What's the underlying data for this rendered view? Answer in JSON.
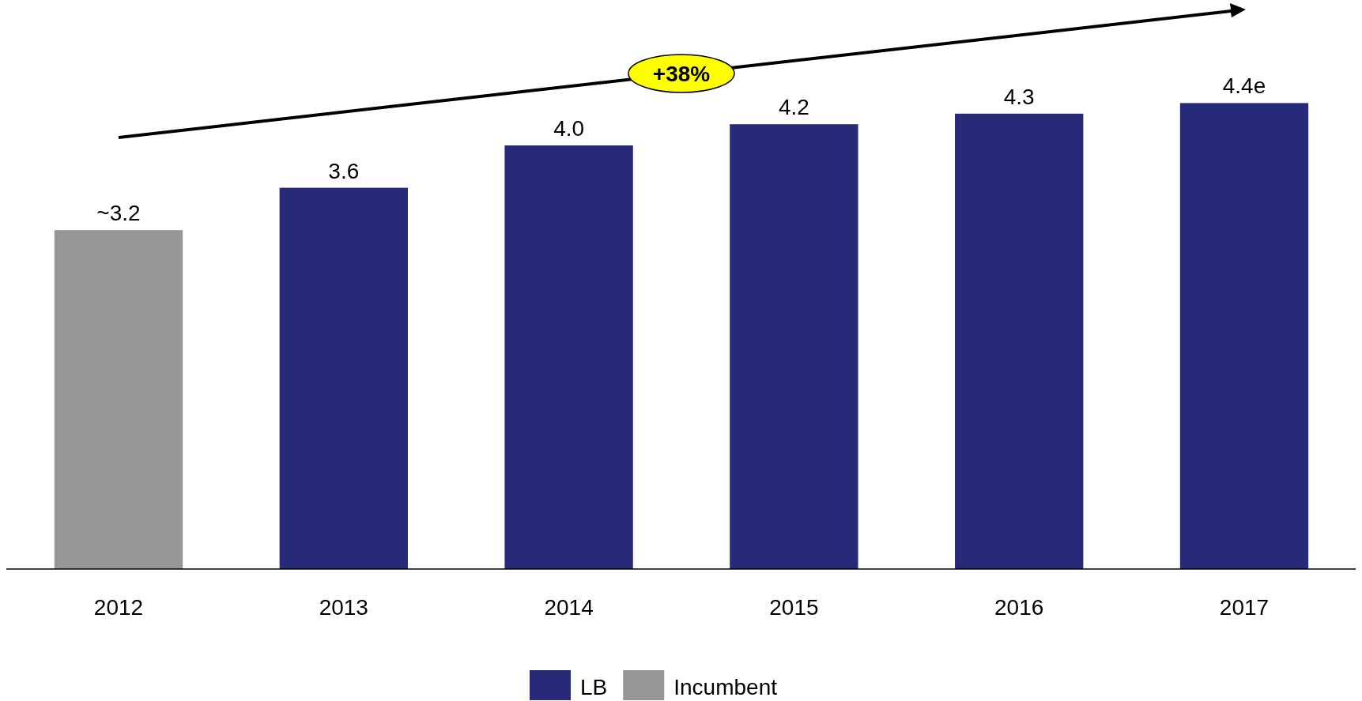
{
  "chart_data": {
    "type": "bar",
    "categories": [
      "2012",
      "2013",
      "2014",
      "2015",
      "2016",
      "2017"
    ],
    "legend": "bottom",
    "annotations": [
      "+38%"
    ],
    "series": [
      {
        "name": "LB",
        "color": "#262a78",
        "values": [
          null,
          3.6,
          4.0,
          4.2,
          4.3,
          4.4
        ],
        "value_labels": [
          null,
          "3.6",
          "4.0",
          "4.2",
          "4.3",
          "4.4e"
        ]
      },
      {
        "name": "Incumbent",
        "color": "#969696",
        "values": [
          3.2,
          null,
          null,
          null,
          null,
          null
        ],
        "value_labels": [
          "~3.2",
          null,
          null,
          null,
          null,
          null
        ]
      }
    ]
  }
}
